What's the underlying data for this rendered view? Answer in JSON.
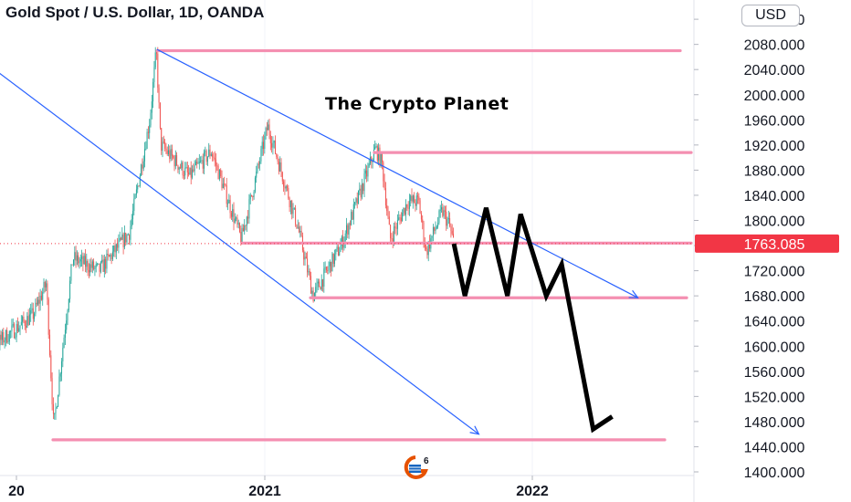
{
  "header": {
    "title": "Gold Spot / U.S. Dollar, 1D, OANDA",
    "currency": "USD"
  },
  "watermark": "The Crypto Planet",
  "logo_badge": "6",
  "colors": {
    "candle_up": "#26a69a",
    "candle_down": "#ef5350",
    "trendline": "#2962ff",
    "level": "#f48fb1",
    "projection": "#000000",
    "price_tag": "#f23645",
    "axis_text": "#131722"
  },
  "chart_data": {
    "type": "candlestick",
    "instrument": "Gold Spot / U.S. Dollar",
    "interval": "1D",
    "source": "OANDA",
    "ylim": [
      1380,
      2135
    ],
    "x_ticks": [
      "20",
      "2021",
      "2022"
    ],
    "y_ticks": [
      1400,
      1440,
      1480,
      1520,
      1560,
      1600,
      1640,
      1680,
      1720,
      1760,
      1800,
      1840,
      1880,
      1920,
      1960,
      2000,
      2040,
      2080,
      2120
    ],
    "y_tick_labels": [
      "1400.000",
      "1440.000",
      "1480.000",
      "1520.000",
      "1560.000",
      "1600.000",
      "1640.000",
      "1680.000",
      "1720.000",
      "1760.000",
      "1800.000",
      "1840.000",
      "1880.000",
      "1920.000",
      "1960.000",
      "2000.000",
      "2040.000",
      "2080.000",
      "2120.000"
    ],
    "last_price": 1763.085,
    "last_price_label": "1763.085",
    "horizontal_levels": [
      2070,
      1908,
      1764,
      1677,
      1451
    ],
    "price_path": [
      [
        "2019-12-01",
        1590
      ],
      [
        "2020-01-08",
        1610
      ],
      [
        "2020-02-20",
        1650
      ],
      [
        "2020-03-09",
        1700
      ],
      [
        "2020-03-19",
        1470
      ],
      [
        "2020-04-14",
        1740
      ],
      [
        "2020-05-20",
        1720
      ],
      [
        "2020-06-30",
        1780
      ],
      [
        "2020-07-28",
        1960
      ],
      [
        "2020-08-06",
        2070
      ],
      [
        "2020-08-12",
        1920
      ],
      [
        "2020-09-20",
        1870
      ],
      [
        "2020-10-20",
        1910
      ],
      [
        "2020-11-30",
        1770
      ],
      [
        "2021-01-05",
        1950
      ],
      [
        "2021-02-15",
        1790
      ],
      [
        "2021-03-08",
        1680
      ],
      [
        "2021-04-15",
        1760
      ],
      [
        "2021-05-10",
        1840
      ],
      [
        "2021-06-01",
        1915
      ],
      [
        "2021-06-10",
        1890
      ],
      [
        "2021-06-21",
        1770
      ],
      [
        "2021-07-15",
        1830
      ],
      [
        "2021-07-30",
        1830
      ],
      [
        "2021-08-09",
        1750
      ],
      [
        "2021-08-31",
        1815
      ],
      [
        "2021-09-09",
        1795
      ],
      [
        "2021-09-16",
        1763
      ]
    ],
    "trendlines": [
      {
        "from": [
          "2020-08-07",
          2072
        ],
        "to": [
          "2022-05-25",
          1677
        ]
      },
      {
        "from": [
          "2019-12-01",
          2065
        ],
        "to": [
          "2021-10-20",
          1460
        ]
      }
    ],
    "projection": [
      [
        "2021-09-16",
        1763
      ],
      [
        "2021-10-01",
        1680
      ],
      [
        "2021-10-30",
        1820
      ],
      [
        "2021-11-28",
        1680
      ],
      [
        "2021-12-16",
        1810
      ],
      [
        "2022-01-20",
        1680
      ],
      [
        "2022-02-10",
        1730
      ],
      [
        "2022-03-25",
        1468
      ],
      [
        "2022-04-20",
        1488
      ]
    ]
  }
}
